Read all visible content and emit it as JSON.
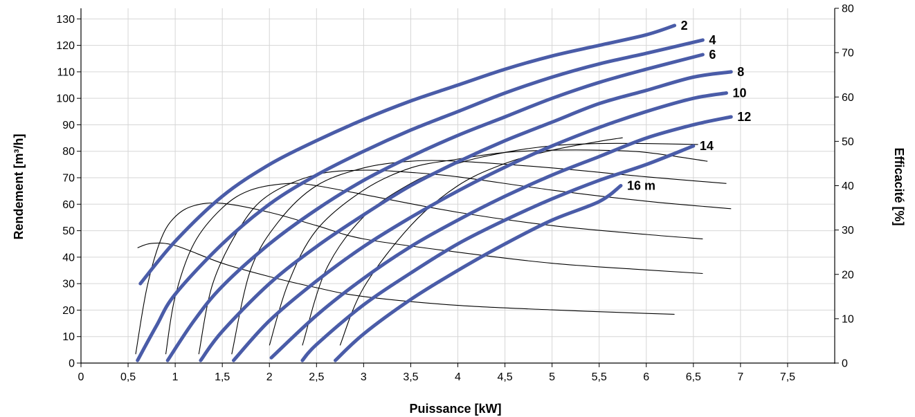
{
  "chart_data": {
    "type": "line",
    "xlabel": "Puissance [kW]",
    "ylabel": "Rendement [m³/h]",
    "y2label": "Efficacité [%]",
    "xlim": [
      0,
      8
    ],
    "ylim": [
      0,
      134
    ],
    "y2lim": [
      0,
      80
    ],
    "xticks": [
      "0",
      "0,5",
      "1",
      "1,5",
      "2",
      "2,5",
      "3",
      "3,5",
      "4",
      "4,5",
      "5",
      "5,5",
      "6",
      "6,5",
      "7",
      "7,5"
    ],
    "xtick_values": [
      0,
      0.5,
      1,
      1.5,
      2,
      2.5,
      3,
      3.5,
      4,
      4.5,
      5,
      5.5,
      6,
      6.5,
      7,
      7.5
    ],
    "yticks": [
      "0",
      "10",
      "20",
      "30",
      "40",
      "50",
      "60",
      "70",
      "80",
      "90",
      "100",
      "110",
      "120",
      "130"
    ],
    "ytick_values": [
      0,
      10,
      20,
      30,
      40,
      50,
      60,
      70,
      80,
      90,
      100,
      110,
      120,
      130
    ],
    "y2ticks": [
      "0",
      "10",
      "20",
      "30",
      "40",
      "50",
      "60",
      "70",
      "80"
    ],
    "y2tick_values": [
      0,
      10,
      20,
      30,
      40,
      50,
      60,
      70,
      80
    ],
    "grid": true,
    "colors": {
      "flow": "#4a5ca8",
      "efficiency": "#000000",
      "grid": "#d6d6d6"
    },
    "flow_series": [
      {
        "name": "2",
        "points": [
          [
            0.63,
            30.0
          ],
          [
            1.0,
            46.0
          ],
          [
            1.5,
            63.0
          ],
          [
            2.0,
            75.0
          ],
          [
            2.5,
            84.0
          ],
          [
            3.0,
            92.0
          ],
          [
            3.5,
            99.0
          ],
          [
            4.0,
            105.0
          ],
          [
            4.5,
            111.0
          ],
          [
            5.0,
            116.0
          ],
          [
            5.5,
            120.0
          ],
          [
            6.0,
            124.0
          ],
          [
            6.3,
            127.5
          ]
        ]
      },
      {
        "name": "4",
        "points": [
          [
            0.6,
            1.0
          ],
          [
            0.8,
            14.0
          ],
          [
            1.0,
            26.0
          ],
          [
            1.5,
            45.0
          ],
          [
            2.0,
            60.0
          ],
          [
            2.5,
            71.0
          ],
          [
            3.0,
            80.0
          ],
          [
            3.5,
            88.0
          ],
          [
            4.0,
            95.0
          ],
          [
            4.5,
            102.0
          ],
          [
            5.0,
            108.0
          ],
          [
            5.5,
            113.0
          ],
          [
            6.0,
            117.0
          ],
          [
            6.6,
            122.0
          ]
        ]
      },
      {
        "name": "6",
        "points": [
          [
            0.92,
            1.0
          ],
          [
            1.2,
            16.0
          ],
          [
            1.5,
            29.0
          ],
          [
            2.0,
            45.0
          ],
          [
            2.5,
            58.0
          ],
          [
            3.0,
            69.0
          ],
          [
            3.5,
            78.0
          ],
          [
            4.0,
            86.0
          ],
          [
            4.5,
            93.0
          ],
          [
            5.0,
            100.0
          ],
          [
            5.5,
            106.0
          ],
          [
            6.0,
            111.0
          ],
          [
            6.6,
            116.5
          ]
        ]
      },
      {
        "name": "8",
        "points": [
          [
            1.27,
            1.0
          ],
          [
            1.5,
            12.0
          ],
          [
            2.0,
            30.0
          ],
          [
            2.5,
            44.0
          ],
          [
            3.0,
            56.0
          ],
          [
            3.5,
            67.0
          ],
          [
            4.0,
            76.0
          ],
          [
            4.5,
            84.0
          ],
          [
            5.0,
            91.0
          ],
          [
            5.5,
            98.0
          ],
          [
            6.0,
            103.0
          ],
          [
            6.5,
            108.0
          ],
          [
            6.9,
            110.0
          ]
        ]
      },
      {
        "name": "10",
        "points": [
          [
            1.62,
            1.0
          ],
          [
            2.0,
            16.0
          ],
          [
            2.5,
            31.0
          ],
          [
            3.0,
            44.0
          ],
          [
            3.5,
            55.0
          ],
          [
            4.0,
            65.0
          ],
          [
            4.5,
            74.0
          ],
          [
            5.0,
            82.0
          ],
          [
            5.5,
            89.0
          ],
          [
            6.0,
            95.0
          ],
          [
            6.5,
            100.0
          ],
          [
            6.85,
            102.0
          ]
        ]
      },
      {
        "name": "12",
        "points": [
          [
            2.02,
            2.0
          ],
          [
            2.5,
            18.0
          ],
          [
            3.0,
            32.0
          ],
          [
            3.5,
            44.0
          ],
          [
            4.0,
            54.0
          ],
          [
            4.5,
            63.0
          ],
          [
            5.0,
            71.0
          ],
          [
            5.5,
            78.0
          ],
          [
            6.0,
            85.0
          ],
          [
            6.5,
            90.0
          ],
          [
            6.9,
            93.0
          ]
        ]
      },
      {
        "name": "14",
        "points": [
          [
            2.35,
            1.0
          ],
          [
            2.5,
            7.0
          ],
          [
            3.0,
            22.0
          ],
          [
            3.5,
            34.0
          ],
          [
            4.0,
            45.0
          ],
          [
            4.5,
            54.0
          ],
          [
            5.0,
            62.0
          ],
          [
            5.5,
            69.0
          ],
          [
            6.0,
            75.0
          ],
          [
            6.5,
            82.0
          ]
        ]
      },
      {
        "name": "16 m",
        "points": [
          [
            2.7,
            1.0
          ],
          [
            3.0,
            11.0
          ],
          [
            3.5,
            24.0
          ],
          [
            4.0,
            35.0
          ],
          [
            4.5,
            45.0
          ],
          [
            5.0,
            54.0
          ],
          [
            5.5,
            61.0
          ],
          [
            5.73,
            67.0
          ]
        ]
      }
    ],
    "efficiency_series": [
      {
        "points": [
          [
            0.6,
            26.0
          ],
          [
            0.75,
            27.0
          ],
          [
            1.0,
            26.5
          ],
          [
            1.5,
            22.5
          ],
          [
            2.0,
            19.5
          ],
          [
            2.5,
            17.0
          ],
          [
            3.0,
            15.0
          ],
          [
            4.0,
            13.0
          ],
          [
            5.0,
            12.0
          ],
          [
            6.0,
            11.2
          ],
          [
            6.3,
            11.0
          ]
        ]
      },
      {
        "points": [
          [
            0.58,
            2.0
          ],
          [
            0.7,
            17.0
          ],
          [
            0.85,
            28.0
          ],
          [
            1.0,
            33.0
          ],
          [
            1.2,
            35.5
          ],
          [
            1.5,
            36.0
          ],
          [
            2.0,
            34.0
          ],
          [
            2.5,
            31.0
          ],
          [
            3.0,
            28.0
          ],
          [
            4.0,
            25.0
          ],
          [
            5.0,
            22.5
          ],
          [
            6.0,
            21.0
          ],
          [
            6.6,
            20.2
          ]
        ]
      },
      {
        "points": [
          [
            0.9,
            2.0
          ],
          [
            1.0,
            15.0
          ],
          [
            1.2,
            27.0
          ],
          [
            1.5,
            35.0
          ],
          [
            1.8,
            39.0
          ],
          [
            2.2,
            40.5
          ],
          [
            2.5,
            40.0
          ],
          [
            3.0,
            38.0
          ],
          [
            4.0,
            34.0
          ],
          [
            5.0,
            31.0
          ],
          [
            6.0,
            29.0
          ],
          [
            6.6,
            28.0
          ]
        ]
      },
      {
        "points": [
          [
            1.25,
            2.0
          ],
          [
            1.4,
            18.0
          ],
          [
            1.7,
            31.0
          ],
          [
            2.0,
            38.0
          ],
          [
            2.5,
            42.5
          ],
          [
            3.0,
            43.5
          ],
          [
            3.5,
            43.0
          ],
          [
            4.0,
            42.0
          ],
          [
            5.0,
            39.0
          ],
          [
            6.0,
            36.5
          ],
          [
            6.9,
            34.8
          ]
        ]
      },
      {
        "points": [
          [
            1.6,
            2.0
          ],
          [
            1.8,
            21.0
          ],
          [
            2.1,
            32.0
          ],
          [
            2.5,
            40.0
          ],
          [
            3.0,
            44.0
          ],
          [
            3.5,
            45.5
          ],
          [
            4.0,
            45.5
          ],
          [
            5.0,
            44.0
          ],
          [
            6.0,
            42.0
          ],
          [
            6.85,
            40.5
          ]
        ]
      },
      {
        "points": [
          [
            2.0,
            4.0
          ],
          [
            2.2,
            18.0
          ],
          [
            2.5,
            30.0
          ],
          [
            3.0,
            39.0
          ],
          [
            3.5,
            44.0
          ],
          [
            4.0,
            46.0
          ],
          [
            4.5,
            47.5
          ],
          [
            5.0,
            48.0
          ],
          [
            5.5,
            48.0
          ],
          [
            6.0,
            47.5
          ],
          [
            6.65,
            45.5
          ]
        ]
      },
      {
        "points": [
          [
            2.35,
            4.0
          ],
          [
            2.6,
            21.0
          ],
          [
            3.0,
            33.0
          ],
          [
            3.5,
            40.5
          ],
          [
            4.0,
            45.0
          ],
          [
            4.5,
            47.5
          ],
          [
            5.0,
            49.0
          ],
          [
            5.5,
            49.5
          ],
          [
            6.0,
            49.5
          ],
          [
            6.55,
            49.3
          ]
        ]
      },
      {
        "points": [
          [
            2.75,
            4.0
          ],
          [
            3.0,
            17.0
          ],
          [
            3.5,
            31.0
          ],
          [
            4.0,
            40.0
          ],
          [
            4.5,
            45.0
          ],
          [
            5.0,
            48.0
          ],
          [
            5.5,
            50.0
          ],
          [
            5.75,
            50.8
          ]
        ]
      }
    ]
  }
}
